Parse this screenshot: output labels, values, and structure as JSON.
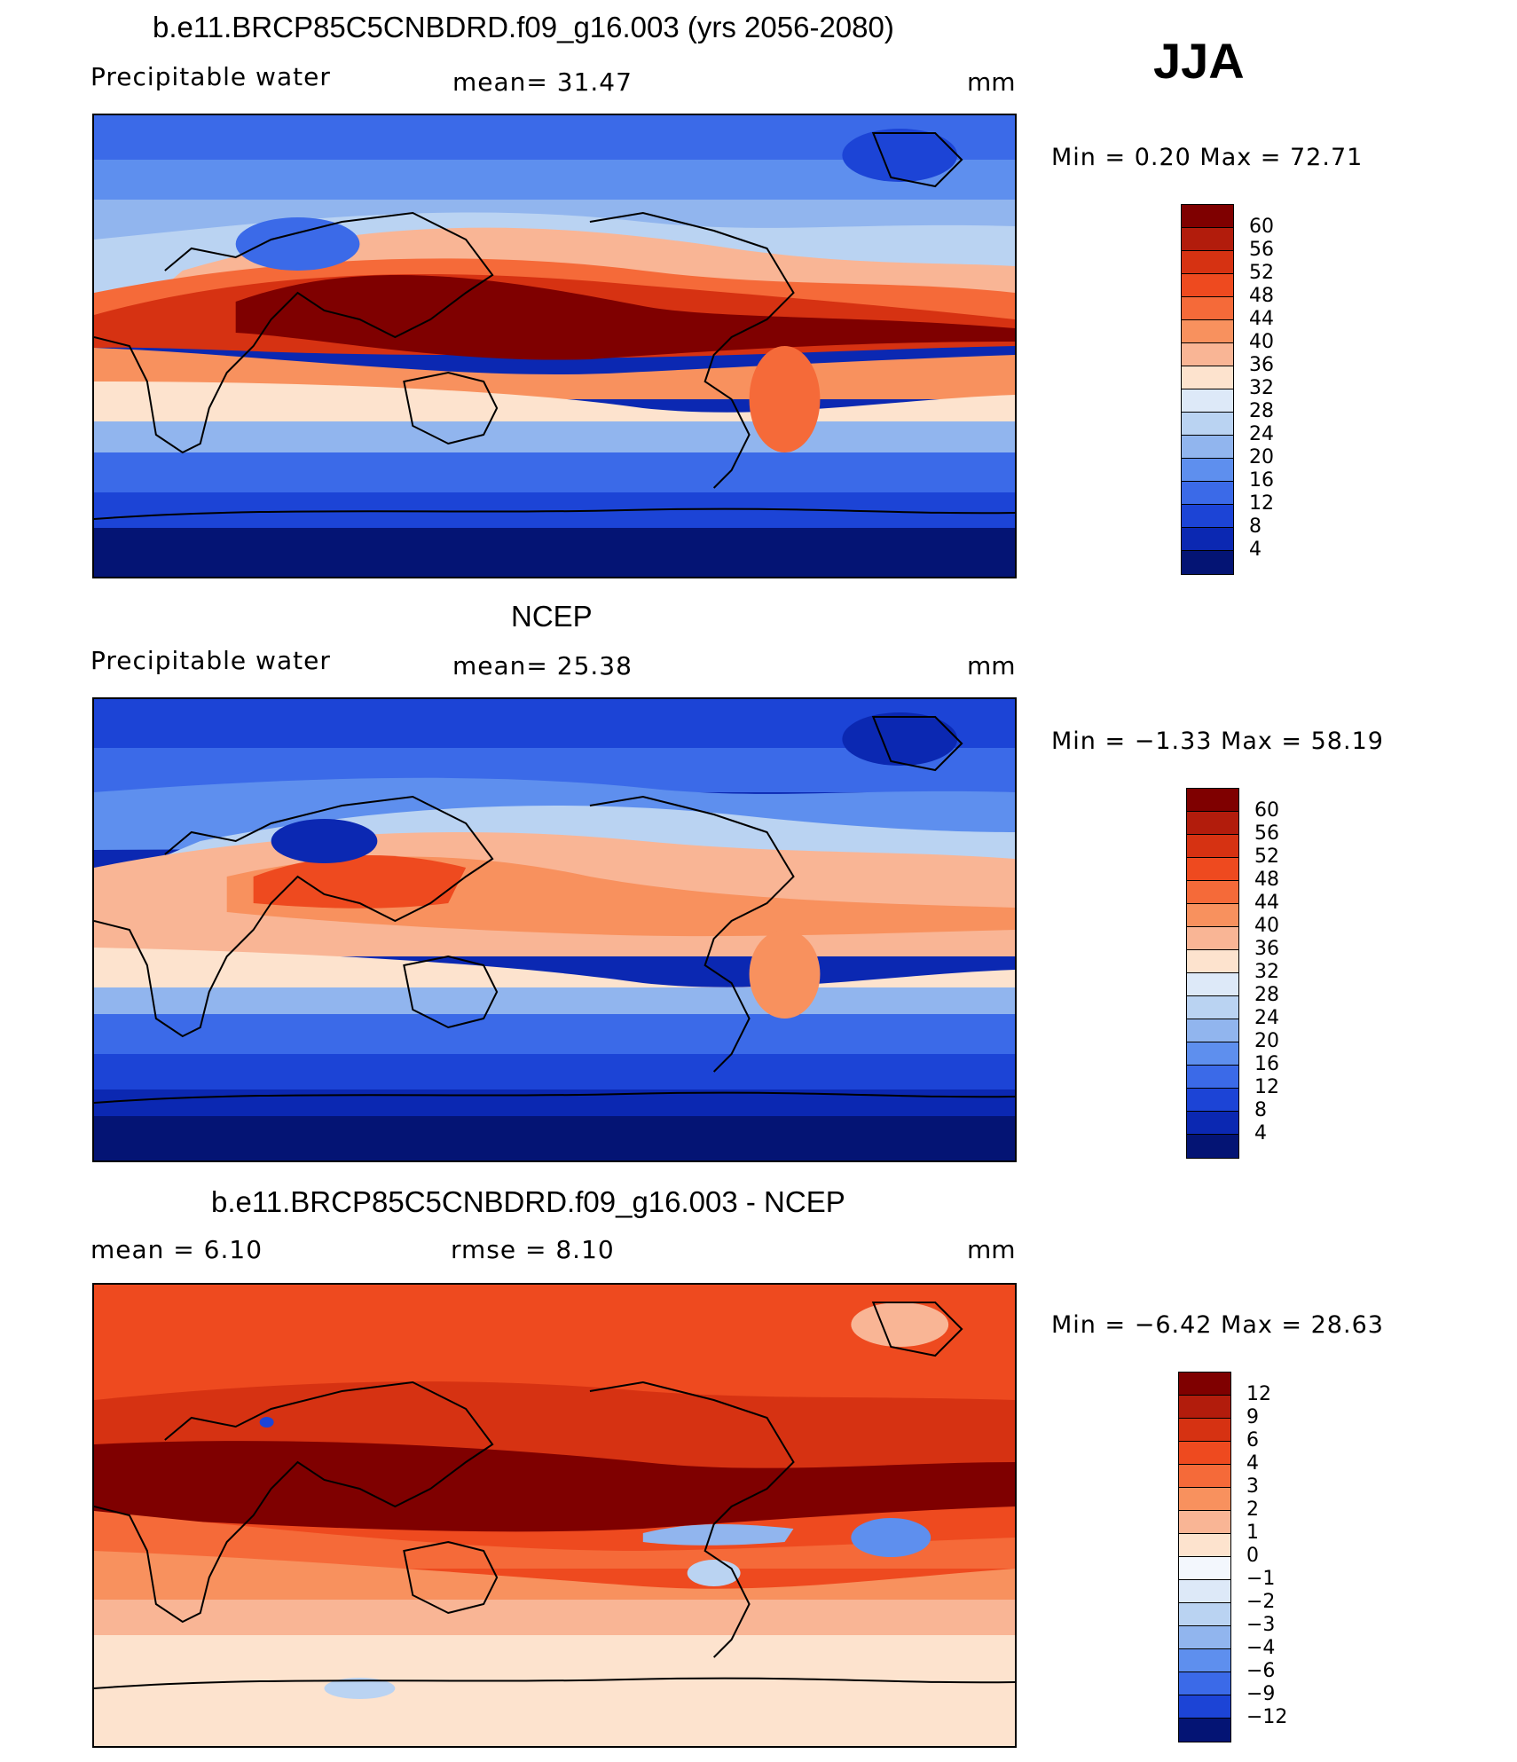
{
  "season": "JJA",
  "panels": [
    {
      "id": "model",
      "title": "b.e11.BRCP85C5CNBDRD.f09_g16.003 (yrs 2056-2080)",
      "left_label": "Precipitable  water",
      "mid_label": "mean=   31.47",
      "units": "mm",
      "minmax": "Min  =    0.20  Max  =   72.71",
      "colorbar_labels": [
        "60",
        "56",
        "52",
        "48",
        "44",
        "40",
        "36",
        "32",
        "28",
        "24",
        "20",
        "16",
        "12",
        "8",
        "4"
      ]
    },
    {
      "id": "ncep",
      "title": "NCEP",
      "left_label": "Precipitable  water",
      "mid_label": "mean=   25.38",
      "units": "mm",
      "minmax": "Min  =   −1.33  Max  =   58.19",
      "colorbar_labels": [
        "60",
        "56",
        "52",
        "48",
        "44",
        "40",
        "36",
        "32",
        "28",
        "24",
        "20",
        "16",
        "12",
        "8",
        "4"
      ]
    },
    {
      "id": "diff",
      "title": "b.e11.BRCP85C5CNBDRD.f09_g16.003 - NCEP",
      "left_label": "mean  =      6.10",
      "mid_label": "rmse  =      8.10",
      "units": "mm",
      "minmax": "Min  =   −6.42  Max  =   28.63",
      "colorbar_labels": [
        "12",
        "9",
        "6",
        "4",
        "3",
        "2",
        "1",
        "0",
        "−1",
        "−2",
        "−3",
        "−4",
        "−6",
        "−9",
        "−12"
      ]
    }
  ],
  "colors": {
    "abs_scale": [
      "#7f0000",
      "#b21c0c",
      "#d63212",
      "#ee4a1f",
      "#f56a39",
      "#f8915e",
      "#f9b595",
      "#fde3ce",
      "#dde9f8",
      "#bad3f2",
      "#91b5ee",
      "#5e8fee",
      "#3b6ae8",
      "#1c44d6",
      "#0b28b2",
      "#041474"
    ],
    "diff_scale": [
      "#7f0000",
      "#b21c0c",
      "#d63212",
      "#ee4a1f",
      "#f56a39",
      "#f8915e",
      "#f9b595",
      "#fde3ce",
      "#f3f7fd",
      "#dde9f8",
      "#bad3f2",
      "#91b5ee",
      "#5e8fee",
      "#3b6ae8",
      "#1c44d6",
      "#041474"
    ]
  }
}
